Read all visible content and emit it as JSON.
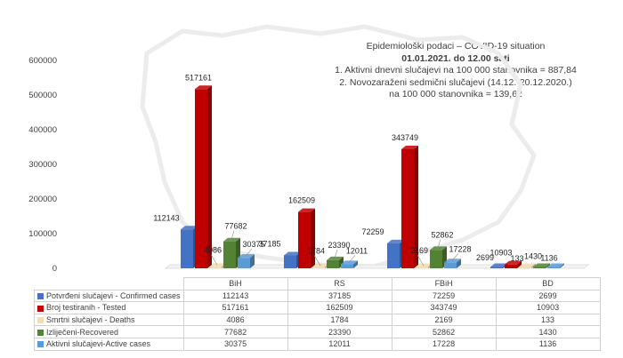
{
  "info": {
    "line1": "Epidemiološki podaci – COVID-19 situation",
    "line2": "01.01.2021. do 12.00 sati",
    "line3": "1. Aktivni dnevni slučajevi na 100 000 stanovnika = 887,84",
    "line4": "2. Novozaraženi sedmični slučajevi (14.12.-20.12.2020.)",
    "line5": "na 100 000 stanovnika = 139,62"
  },
  "chart_data": {
    "type": "bar",
    "categories": [
      "BiH",
      "RS",
      "FBiH",
      "BD"
    ],
    "series": [
      {
        "name": "Potvrđeni slučajevi - Confirmed cases",
        "color": "#4472c4",
        "values": [
          112143,
          37185,
          72259,
          2699
        ]
      },
      {
        "name": "Broj testiranih - Tested",
        "color": "#c00000",
        "values": [
          517161,
          162509,
          343749,
          10903
        ]
      },
      {
        "name": "Smrtni slučajevi - Deaths",
        "color": "#f2dcb3",
        "values": [
          4086,
          1784,
          2169,
          133
        ]
      },
      {
        "name": "Izliječeni-Recovered",
        "color": "#548235",
        "values": [
          77682,
          23390,
          52862,
          1430
        ]
      },
      {
        "name": "Aktivni slučajevi-Active cases",
        "color": "#5b9bd5",
        "values": [
          30375,
          12011,
          17228,
          1136
        ]
      }
    ],
    "yticks": [
      "0",
      "100000",
      "200000",
      "300000",
      "400000",
      "500000",
      "600000"
    ],
    "ylim": [
      0,
      600000
    ]
  }
}
